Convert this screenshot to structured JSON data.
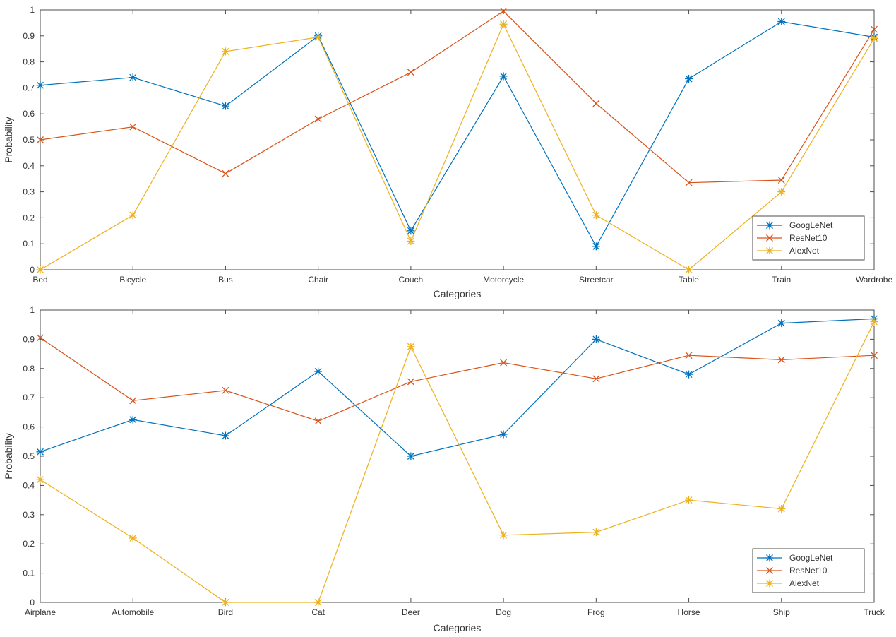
{
  "colors": {
    "googlenet": "#0072bd",
    "resnet10": "#d95319",
    "alexnet": "#edb120",
    "axis": "#4d4d4d"
  },
  "chart_data": [
    {
      "type": "line",
      "categories": [
        "Bed",
        "Bicycle",
        "Bus",
        "Chair",
        "Couch",
        "Motorcycle",
        "Streetcar",
        "Table",
        "Train",
        "Wardrobe"
      ],
      "xlabel": "Categories",
      "ylabel": "Probability",
      "ylim": [
        0,
        1
      ],
      "yticks": [
        "0",
        "0.1",
        "0.2",
        "0.3",
        "0.4",
        "0.5",
        "0.6",
        "0.7",
        "0.8",
        "0.9",
        "1"
      ],
      "legend": "bottom-right",
      "grid": false,
      "series": [
        {
          "name": "GoogLeNet",
          "color": "#0072bd",
          "marker": "star",
          "values": [
            0.71,
            0.74,
            0.63,
            0.9,
            0.15,
            0.745,
            0.09,
            0.735,
            0.955,
            0.895
          ]
        },
        {
          "name": "ResNet10",
          "color": "#d95319",
          "marker": "cross",
          "values": [
            0.5,
            0.55,
            0.37,
            0.58,
            0.76,
            0.995,
            0.64,
            0.335,
            0.345,
            0.925
          ]
        },
        {
          "name": "AlexNet",
          "color": "#edb120",
          "marker": "star",
          "values": [
            0.0,
            0.21,
            0.84,
            0.895,
            0.11,
            0.945,
            0.21,
            0.0,
            0.3,
            0.89
          ]
        }
      ]
    },
    {
      "type": "line",
      "categories": [
        "Airplane",
        "Automobile",
        "Bird",
        "Cat",
        "Deer",
        "Dog",
        "Frog",
        "Horse",
        "Ship",
        "Truck"
      ],
      "xlabel": "Categories",
      "ylabel": "Probability",
      "ylim": [
        0,
        1
      ],
      "yticks": [
        "0",
        "0.1",
        "0.2",
        "0.3",
        "0.4",
        "0.5",
        "0.6",
        "0.7",
        "0.8",
        "0.9",
        "1"
      ],
      "legend": "bottom-right",
      "grid": false,
      "series": [
        {
          "name": "GoogLeNet",
          "color": "#0072bd",
          "marker": "star",
          "values": [
            0.515,
            0.625,
            0.57,
            0.79,
            0.5,
            0.575,
            0.9,
            0.78,
            0.955,
            0.97
          ]
        },
        {
          "name": "ResNet10",
          "color": "#d95319",
          "marker": "cross",
          "values": [
            0.905,
            0.69,
            0.725,
            0.62,
            0.755,
            0.82,
            0.765,
            0.845,
            0.83,
            0.845
          ]
        },
        {
          "name": "AlexNet",
          "color": "#edb120",
          "marker": "star",
          "values": [
            0.42,
            0.22,
            0.0,
            0.0,
            0.875,
            0.23,
            0.24,
            0.35,
            0.32,
            0.96
          ]
        }
      ]
    }
  ]
}
